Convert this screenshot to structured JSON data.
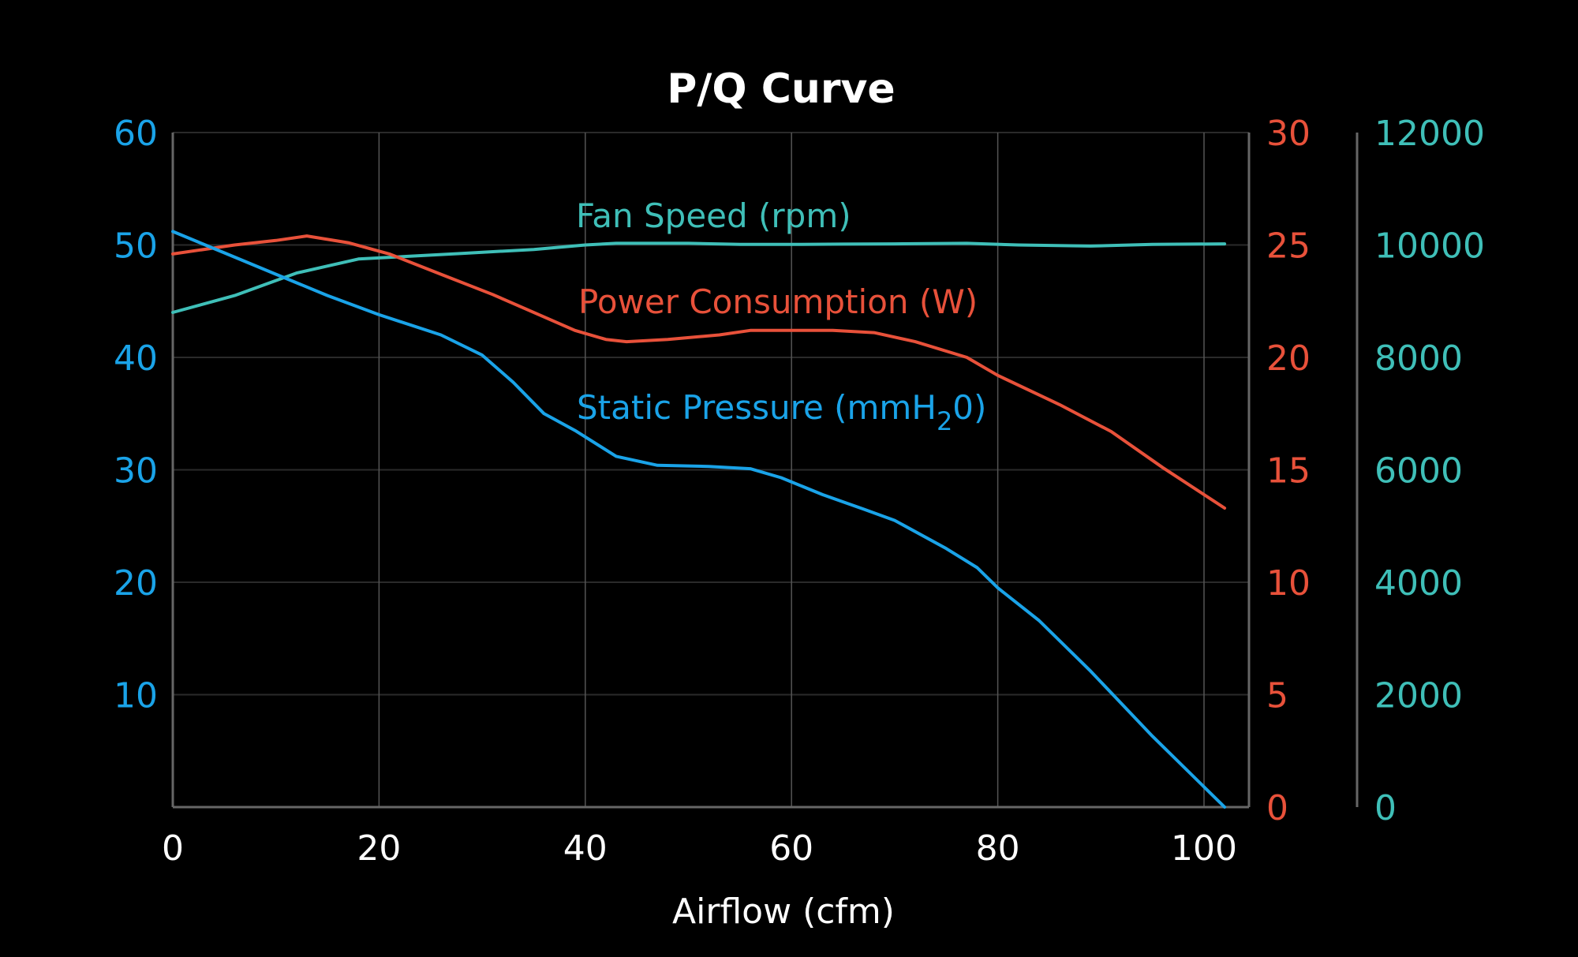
{
  "chart_data": {
    "type": "line",
    "title": "P/Q Curve",
    "xlabel": "Airflow (cfm)",
    "xlim": [
      0,
      103
    ],
    "xticks": [
      0,
      20,
      40,
      60,
      80,
      100
    ],
    "grid": true,
    "axes": {
      "pressure": {
        "ylim": [
          0,
          60
        ],
        "ticks": [
          10,
          20,
          30,
          40,
          50,
          60
        ],
        "color": "#1aa3e8"
      },
      "power": {
        "ylim": [
          0,
          30
        ],
        "ticks": [
          0,
          5,
          10,
          15,
          20,
          25,
          30
        ],
        "color": "#e8513a"
      },
      "speed": {
        "ylim": [
          0,
          12000
        ],
        "ticks": [
          0,
          2000,
          4000,
          6000,
          8000,
          10000,
          12000
        ],
        "color": "#3fbfb8"
      }
    },
    "series": [
      {
        "key": "speed",
        "name": "Fan Speed (rpm)",
        "axis": "speed",
        "color": "#3fbfb8",
        "x": [
          0,
          6,
          12,
          18,
          23,
          28,
          35,
          40,
          43,
          50,
          55,
          60,
          65,
          70,
          77,
          82,
          89,
          95,
          102
        ],
        "y": [
          8800,
          9100,
          9500,
          9750,
          9800,
          9850,
          9920,
          10000,
          10030,
          10030,
          10010,
          10010,
          10015,
          10020,
          10030,
          10000,
          9980,
          10010,
          10020
        ]
      },
      {
        "key": "power",
        "name": "Power Consumption (W)",
        "axis": "power",
        "color": "#e8513a",
        "x": [
          0,
          6,
          10,
          13,
          17,
          21,
          26,
          31,
          36,
          39,
          42,
          44,
          48,
          53,
          56,
          60,
          64,
          68,
          72,
          77,
          80,
          86,
          91,
          96,
          102
        ],
        "y": [
          24.6,
          25.0,
          25.2,
          25.4,
          25.1,
          24.6,
          23.7,
          22.8,
          21.8,
          21.2,
          20.8,
          20.7,
          20.8,
          21.0,
          21.2,
          21.2,
          21.2,
          21.1,
          20.7,
          20.0,
          19.2,
          17.9,
          16.7,
          15.1,
          13.3
        ]
      },
      {
        "key": "pressure",
        "name": "Static Pressure (mmH",
        "name_sub": "2",
        "name_tail": "0)",
        "axis": "pressure",
        "color": "#1aa3e8",
        "x": [
          0,
          5,
          10,
          15,
          20,
          26,
          30,
          33,
          36,
          39,
          43,
          47,
          52,
          56,
          59,
          63,
          67,
          70,
          75,
          78,
          80,
          84,
          89,
          95,
          102
        ],
        "y": [
          51.2,
          49.3,
          47.4,
          45.5,
          43.8,
          42.0,
          40.2,
          37.8,
          35.0,
          33.5,
          31.2,
          30.4,
          30.3,
          30.1,
          29.3,
          27.8,
          26.5,
          25.5,
          23.0,
          21.3,
          19.5,
          16.6,
          12.1,
          6.3,
          0.0
        ]
      }
    ]
  }
}
